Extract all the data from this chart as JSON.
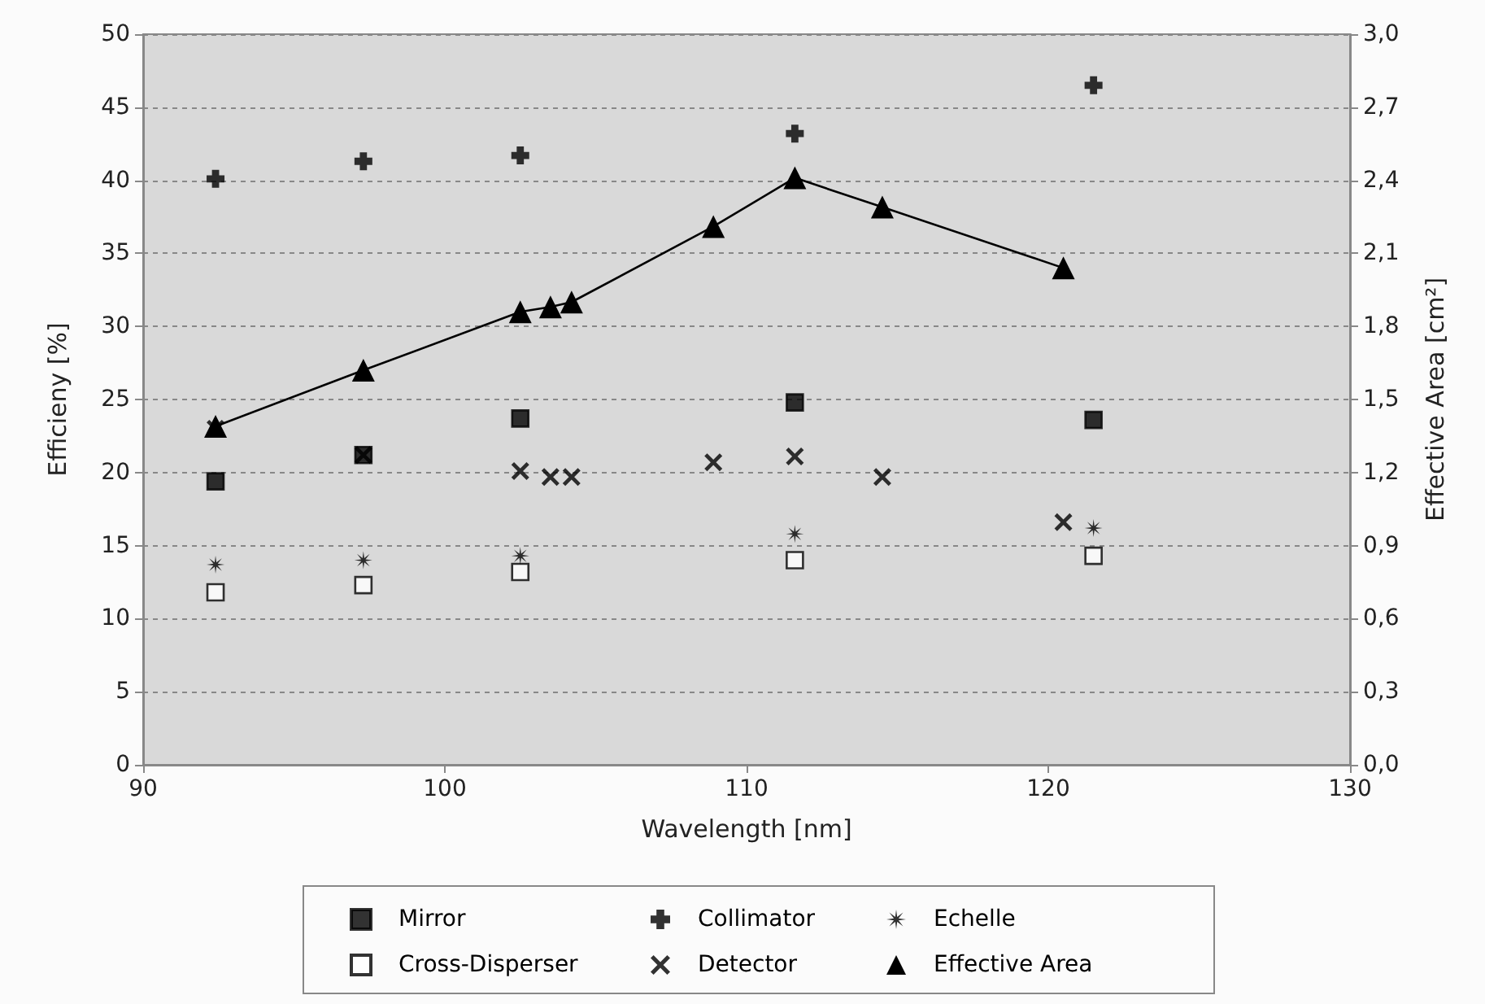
{
  "chart_data": {
    "type": "scatter",
    "xlabel": "Wavelength [nm]",
    "ylabel": "Efficieny [%]",
    "y2label": "Effective Area [cm²]",
    "xlim": [
      90,
      130
    ],
    "xticks": [
      90,
      100,
      110,
      120,
      130
    ],
    "ylim": [
      0,
      50
    ],
    "yticks": [
      0,
      5,
      10,
      15,
      20,
      25,
      30,
      35,
      40,
      45,
      50
    ],
    "y2lim": [
      0,
      3
    ],
    "y2ticks": [
      {
        "value": 0,
        "label": "0,0"
      },
      {
        "value": 0.3,
        "label": "0,3"
      },
      {
        "value": 0.6,
        "label": "0,6"
      },
      {
        "value": 0.9,
        "label": "0,9"
      },
      {
        "value": 1.2,
        "label": "1,2"
      },
      {
        "value": 1.5,
        "label": "1,5"
      },
      {
        "value": 1.8,
        "label": "1,8"
      },
      {
        "value": 2.1,
        "label": "2,1"
      },
      {
        "value": 2.4,
        "label": "2,4"
      },
      {
        "value": 2.7,
        "label": "2,7"
      },
      {
        "value": 3,
        "label": "3,0"
      }
    ],
    "grid": "y",
    "legend": "bottom",
    "series": [
      {
        "name": "Mirror",
        "color": "#000000",
        "marker": "square",
        "x": [
          92.4,
          97.3,
          102.5,
          111.6,
          121.5
        ],
        "values": [
          19.4,
          21.2,
          23.7,
          24.8,
          23.6
        ]
      },
      {
        "name": "Collimator",
        "color": "#000000",
        "marker": "plus",
        "x": [
          92.4,
          97.3,
          102.5,
          111.6,
          121.5
        ],
        "values": [
          40.1,
          41.3,
          41.7,
          43.2,
          46.5
        ]
      },
      {
        "name": "Echelle",
        "color": "#000000",
        "marker": "star",
        "x": [
          92.4,
          97.3,
          102.5,
          111.6,
          121.5
        ],
        "values": [
          13.7,
          14.0,
          14.3,
          15.8,
          16.2
        ]
      },
      {
        "name": "Cross-Disperser",
        "color": "#ffffff",
        "marker": "square",
        "x": [
          92.4,
          97.3,
          102.5,
          111.6,
          121.5
        ],
        "values": [
          11.8,
          12.3,
          13.2,
          14.0,
          14.3
        ]
      },
      {
        "name": "Detector",
        "color": "#000000",
        "marker": "cross",
        "x": [
          92.4,
          97.3,
          102.5,
          103.5,
          104.2,
          108.9,
          111.6,
          114.5,
          120.5
        ],
        "values": [
          23.0,
          21.2,
          20.1,
          19.7,
          19.7,
          20.7,
          21.1,
          19.7,
          16.6
        ]
      },
      {
        "name": "Effective Area",
        "type": "line",
        "axis": "y2",
        "color": "#000000",
        "marker": "triangle",
        "line_style": "solid",
        "x": [
          92.4,
          97.3,
          102.5,
          103.5,
          104.2,
          108.9,
          111.6,
          114.5,
          120.5
        ],
        "values": [
          1.39,
          1.62,
          1.86,
          1.88,
          1.9,
          2.21,
          2.41,
          2.29,
          2.04
        ]
      }
    ]
  }
}
